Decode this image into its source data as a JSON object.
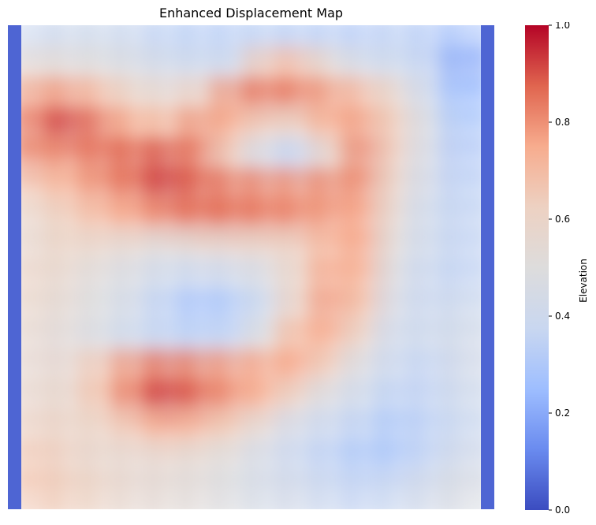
{
  "chart_data": {
    "type": "heatmap",
    "title": "Enhanced Displacement Map",
    "xlabel": "",
    "ylabel": "",
    "axes_visible": false,
    "colormap": "coolwarm",
    "colormap_stops": [
      "#3b4cc0",
      "#6a8bef",
      "#9ebeff",
      "#c9d7f0",
      "#dddcdc",
      "#edd1c2",
      "#f7ac8e",
      "#e0654f",
      "#b40426"
    ],
    "colorbar": {
      "label": "Elevation",
      "range": [
        0,
        1
      ],
      "ticks": [
        "0.0",
        "0.2",
        "0.4",
        "0.6",
        "0.8",
        "1.0"
      ],
      "tick_values": [
        0,
        0.2,
        0.4,
        0.6,
        0.8,
        1.0
      ],
      "position": "right"
    },
    "grid_shape": [
      16,
      16
    ],
    "values": [
      [
        0.05,
        0.38,
        0.4,
        0.4,
        0.38,
        0.34,
        0.33,
        0.33,
        0.34,
        0.33,
        0.33,
        0.32,
        0.34,
        0.32,
        0.28,
        0.05
      ],
      [
        0.05,
        0.55,
        0.52,
        0.5,
        0.46,
        0.42,
        0.4,
        0.4,
        0.66,
        0.7,
        0.55,
        0.44,
        0.4,
        0.36,
        0.2,
        0.05
      ],
      [
        0.05,
        0.78,
        0.78,
        0.7,
        0.6,
        0.56,
        0.62,
        0.8,
        0.86,
        0.84,
        0.78,
        0.7,
        0.58,
        0.4,
        0.25,
        0.05
      ],
      [
        0.05,
        0.86,
        0.93,
        0.84,
        0.74,
        0.7,
        0.8,
        0.74,
        0.62,
        0.6,
        0.74,
        0.78,
        0.64,
        0.45,
        0.3,
        0.05
      ],
      [
        0.05,
        0.82,
        0.8,
        0.86,
        0.88,
        0.9,
        0.84,
        0.62,
        0.42,
        0.35,
        0.58,
        0.82,
        0.62,
        0.44,
        0.32,
        0.05
      ],
      [
        0.05,
        0.66,
        0.72,
        0.8,
        0.86,
        0.93,
        0.88,
        0.84,
        0.82,
        0.8,
        0.82,
        0.8,
        0.58,
        0.42,
        0.34,
        0.05
      ],
      [
        0.05,
        0.58,
        0.64,
        0.7,
        0.76,
        0.82,
        0.86,
        0.86,
        0.84,
        0.82,
        0.78,
        0.76,
        0.54,
        0.4,
        0.36,
        0.05
      ],
      [
        0.05,
        0.58,
        0.6,
        0.58,
        0.54,
        0.5,
        0.54,
        0.56,
        0.58,
        0.62,
        0.72,
        0.76,
        0.5,
        0.4,
        0.36,
        0.05
      ],
      [
        0.05,
        0.6,
        0.56,
        0.5,
        0.46,
        0.4,
        0.38,
        0.4,
        0.46,
        0.6,
        0.76,
        0.72,
        0.46,
        0.38,
        0.36,
        0.05
      ],
      [
        0.05,
        0.58,
        0.54,
        0.48,
        0.42,
        0.34,
        0.28,
        0.3,
        0.4,
        0.62,
        0.78,
        0.68,
        0.44,
        0.38,
        0.4,
        0.05
      ],
      [
        0.05,
        0.56,
        0.52,
        0.46,
        0.4,
        0.36,
        0.34,
        0.36,
        0.5,
        0.72,
        0.74,
        0.58,
        0.4,
        0.4,
        0.42,
        0.05
      ],
      [
        0.05,
        0.56,
        0.56,
        0.66,
        0.8,
        0.86,
        0.82,
        0.78,
        0.76,
        0.76,
        0.62,
        0.46,
        0.38,
        0.36,
        0.42,
        0.05
      ],
      [
        0.05,
        0.58,
        0.58,
        0.68,
        0.84,
        0.94,
        0.88,
        0.8,
        0.72,
        0.58,
        0.46,
        0.4,
        0.34,
        0.36,
        0.4,
        0.05
      ],
      [
        0.05,
        0.62,
        0.6,
        0.6,
        0.66,
        0.74,
        0.7,
        0.64,
        0.52,
        0.42,
        0.38,
        0.34,
        0.3,
        0.34,
        0.38,
        0.05
      ],
      [
        0.05,
        0.66,
        0.62,
        0.58,
        0.56,
        0.56,
        0.54,
        0.5,
        0.44,
        0.38,
        0.34,
        0.3,
        0.3,
        0.36,
        0.42,
        0.05
      ],
      [
        0.05,
        0.66,
        0.64,
        0.6,
        0.56,
        0.54,
        0.52,
        0.48,
        0.44,
        0.42,
        0.38,
        0.36,
        0.38,
        0.42,
        0.46,
        0.05
      ]
    ]
  }
}
